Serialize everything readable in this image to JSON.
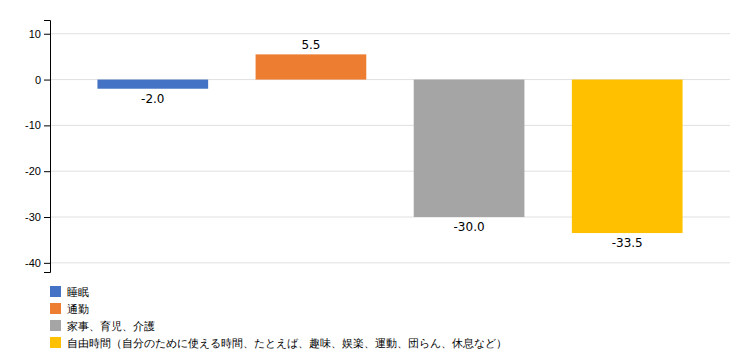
{
  "chart_data": {
    "type": "bar",
    "categories": [
      "睡眠",
      "通勤",
      "家事、育児、介護",
      "自由時間（自分のために使える時間、たとえば、趣味、娱楽、運動、団らん、休息など）"
    ],
    "values": [
      -2.0,
      5.5,
      -30.0,
      -33.5
    ],
    "value_labels": [
      "-2.0",
      "5.5",
      "-30.0",
      "-33.5"
    ],
    "colors": [
      "#4472c4",
      "#ed7d31",
      "#a5a5a5",
      "#ffc000"
    ],
    "ylim": [
      -42,
      13
    ],
    "yticks": [
      -40,
      -30,
      -20,
      -10,
      0,
      10
    ],
    "grid": true,
    "data_labels": true,
    "tick_labels": "y",
    "legend": "bottom"
  }
}
